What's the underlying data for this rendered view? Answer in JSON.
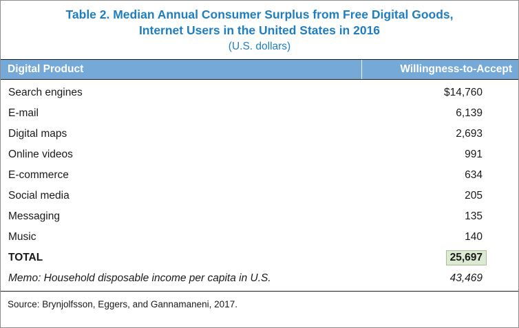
{
  "table": {
    "title_line1": "Table 2. Median Annual Consumer Surplus from Free Digital Goods,",
    "title_line2": "Internet Users in the United States in 2016",
    "subtitle": "(U.S. dollars)",
    "columns": [
      "Digital Product",
      "Willingness-to-Accept"
    ],
    "rows": [
      {
        "label": "Search engines",
        "value": "$14,760"
      },
      {
        "label": "E-mail",
        "value": "6,139"
      },
      {
        "label": "Digital maps",
        "value": "2,693"
      },
      {
        "label": "Online videos",
        "value": "991"
      },
      {
        "label": "E-commerce",
        "value": "634"
      },
      {
        "label": "Social media",
        "value": "205"
      },
      {
        "label": "Messaging",
        "value": "135"
      },
      {
        "label": "Music",
        "value": "140"
      }
    ],
    "total": {
      "label": "TOTAL",
      "value": "25,697"
    },
    "memo": {
      "label": "Memo: Household disposable income per capita in U.S.",
      "value": "43,469"
    },
    "source": "Source: Brynjolfsson, Eggers, and Gannamaneni, 2017."
  },
  "colors": {
    "title_blue": "#1f7ec2",
    "header_bg": "#74a9d8",
    "header_text": "#ffffff",
    "total_highlight_bg": "#dce9d3",
    "total_highlight_border": "#a6bf95",
    "outer_border": "#8c8c8c"
  },
  "chart_data": {
    "type": "table",
    "title": "Table 2. Median Annual Consumer Surplus from Free Digital Goods, Internet Users in the United States in 2016 (U.S. dollars)",
    "columns": [
      "Digital Product",
      "Willingness-to-Accept"
    ],
    "rows": [
      [
        "Search engines",
        14760
      ],
      [
        "E-mail",
        6139
      ],
      [
        "Digital maps",
        2693
      ],
      [
        "Online videos",
        991
      ],
      [
        "E-commerce",
        634
      ],
      [
        "Social media",
        205
      ],
      [
        "Messaging",
        135
      ],
      [
        "Music",
        140
      ],
      [
        "TOTAL",
        25697
      ],
      [
        "Memo: Household disposable income per capita in U.S.",
        43469
      ]
    ],
    "source": "Source: Brynjolfsson, Eggers, and Gannamaneni, 2017."
  }
}
